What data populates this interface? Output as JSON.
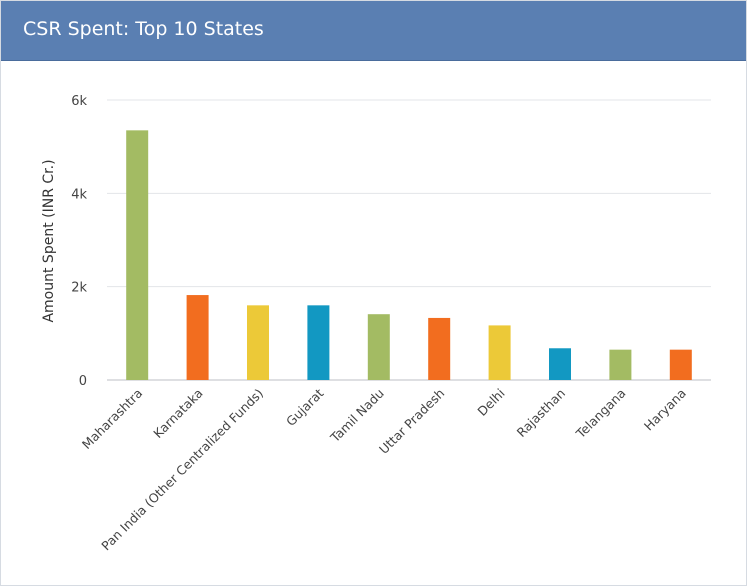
{
  "header": {
    "title": "CSR Spent: Top 10 States"
  },
  "chart_data": {
    "type": "bar",
    "title": "CSR Spent: Top 10 States",
    "xlabel": "",
    "ylabel": "Amount Spent (INR Cr.)",
    "ylim": [
      0,
      6000
    ],
    "yticks": [
      {
        "value": 0,
        "label": "0"
      },
      {
        "value": 2000,
        "label": "2k"
      },
      {
        "value": 4000,
        "label": "4k"
      },
      {
        "value": 6000,
        "label": "6k"
      }
    ],
    "grid": true,
    "categories": [
      "Maharashtra",
      "Karnataka",
      "Pan India (Other Centralized Funds)",
      "Gujarat",
      "Tamil Nadu",
      "Uttar Pradesh",
      "Delhi",
      "Rajasthan",
      "Telangana",
      "Haryana"
    ],
    "values": [
      5350,
      1820,
      1600,
      1600,
      1410,
      1330,
      1170,
      680,
      650,
      650
    ],
    "colors": [
      "#a3bb63",
      "#f26d1f",
      "#ecc938",
      "#1298c2",
      "#a3bb63",
      "#f26d1f",
      "#ecc938",
      "#1298c2",
      "#a3bb63",
      "#f26d1f"
    ]
  }
}
